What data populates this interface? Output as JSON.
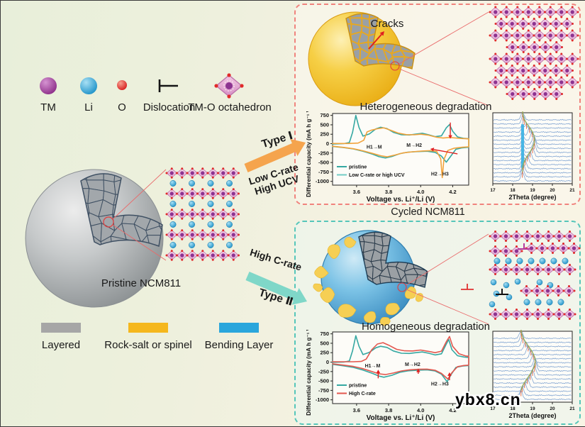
{
  "legend_top": {
    "items": [
      {
        "label": "TM",
        "icon": "tm-sphere-icon",
        "color": "#9b3595"
      },
      {
        "label": "Li",
        "icon": "li-sphere-icon",
        "color": "#2aa3d6"
      },
      {
        "label": "O",
        "icon": "o-sphere-icon",
        "color": "#dd2222"
      },
      {
        "label": "Dislocation",
        "icon": "dislocation-icon",
        "color": "#151515"
      },
      {
        "label": "TM-O octahedron",
        "icon": "octahedron-icon",
        "color": "#e7aed6"
      }
    ]
  },
  "pristine_label": "Pristine NCM811",
  "cycled_label": "Cycled NCM811",
  "cracks_label": "Cracks",
  "type1": {
    "title": "Type Ⅰ",
    "line1": "Low C-rate",
    "line2": "High UCV",
    "arrow_color": "#f5a44d"
  },
  "type2": {
    "title": "Type Ⅱ",
    "line1": "High C-rate",
    "arrow_color": "#7fd7c8"
  },
  "panel_top": {
    "title": "Heterogeneous degradation",
    "border_color": "#f0837d"
  },
  "panel_bottom": {
    "title": "Homogeneous degradation",
    "border_color": "#55c6ba"
  },
  "legend_bottom": {
    "items": [
      {
        "label": "Layered",
        "color": "#a6a6a6"
      },
      {
        "label": "Rock-salt or spinel",
        "color": "#f5b71d"
      },
      {
        "label": "Bending Layer",
        "color": "#2aa6dc"
      }
    ]
  },
  "watermark": "ybx8.cn",
  "chart_data": [
    {
      "name": "dqdv-heterogeneous",
      "type": "line",
      "panel_title": "Heterogeneous degradation",
      "xlabel": "Voltage vs. Li⁺/Li (V)",
      "ylabel": "Differential capacity (mA h g⁻¹ V⁻¹)",
      "xlim": [
        3.45,
        4.3
      ],
      "ylim": [
        -1100,
        800
      ],
      "xticks": [
        3.6,
        3.8,
        4.0,
        4.2
      ],
      "xtick_labels": [
        "3.6",
        "3.8",
        "4.0",
        "4.2"
      ],
      "yticks": [
        750,
        500,
        250,
        0,
        -250,
        -500,
        -750,
        -1000
      ],
      "series": [
        {
          "name": "pristine",
          "color": "#35a8a2",
          "legend_color": "#35a8a2",
          "charge": [
            [
              3.45,
              -10
            ],
            [
              3.52,
              0
            ],
            [
              3.555,
              30
            ],
            [
              3.575,
              300
            ],
            [
              3.595,
              750
            ],
            [
              3.615,
              430
            ],
            [
              3.64,
              200
            ],
            [
              3.68,
              260
            ],
            [
              3.72,
              390
            ],
            [
              3.75,
              435
            ],
            [
              3.79,
              400
            ],
            [
              3.83,
              300
            ],
            [
              3.88,
              235
            ],
            [
              3.93,
              230
            ],
            [
              3.97,
              255
            ],
            [
              4.01,
              275
            ],
            [
              4.05,
              235
            ],
            [
              4.09,
              185
            ],
            [
              4.13,
              210
            ],
            [
              4.16,
              420
            ],
            [
              4.18,
              505
            ],
            [
              4.2,
              330
            ],
            [
              4.23,
              180
            ],
            [
              4.27,
              140
            ],
            [
              4.3,
              130
            ]
          ],
          "discharge": [
            [
              3.45,
              -75
            ],
            [
              3.52,
              -105
            ],
            [
              3.58,
              -140
            ],
            [
              3.64,
              -200
            ],
            [
              3.7,
              -280
            ],
            [
              3.74,
              -345
            ],
            [
              3.78,
              -380
            ],
            [
              3.82,
              -340
            ],
            [
              3.87,
              -265
            ],
            [
              3.92,
              -225
            ],
            [
              3.98,
              -210
            ],
            [
              4.04,
              -200
            ],
            [
              4.09,
              -230
            ],
            [
              4.13,
              -330
            ],
            [
              4.16,
              -490
            ],
            [
              4.185,
              -350
            ],
            [
              4.22,
              -150
            ],
            [
              4.26,
              -110
            ],
            [
              4.3,
              -95
            ]
          ]
        },
        {
          "name": "Low C-rate or high UCV",
          "color": "#f2a33c",
          "legend_color": "#72cdc6",
          "charge": [
            [
              3.45,
              5
            ],
            [
              3.55,
              5
            ],
            [
              3.61,
              15
            ],
            [
              3.645,
              90
            ],
            [
              3.665,
              310
            ],
            [
              3.69,
              355
            ],
            [
              3.73,
              395
            ],
            [
              3.77,
              420
            ],
            [
              3.81,
              360
            ],
            [
              3.86,
              280
            ],
            [
              3.91,
              240
            ],
            [
              3.96,
              235
            ],
            [
              4.0,
              250
            ],
            [
              4.05,
              225
            ],
            [
              4.1,
              170
            ],
            [
              4.14,
              150
            ],
            [
              4.18,
              165
            ],
            [
              4.22,
              150
            ],
            [
              4.26,
              135
            ],
            [
              4.3,
              128
            ]
          ],
          "discharge": [
            [
              3.45,
              -70
            ],
            [
              3.52,
              -100
            ],
            [
              3.58,
              -135
            ],
            [
              3.64,
              -190
            ],
            [
              3.7,
              -260
            ],
            [
              3.75,
              -320
            ],
            [
              3.79,
              -350
            ],
            [
              3.84,
              -300
            ],
            [
              3.89,
              -245
            ],
            [
              3.95,
              -215
            ],
            [
              4.01,
              -195
            ],
            [
              4.06,
              -185
            ],
            [
              4.1,
              -205
            ],
            [
              4.125,
              -400
            ],
            [
              4.135,
              -900
            ],
            [
              4.145,
              -420
            ],
            [
              4.17,
              -180
            ],
            [
              4.21,
              -120
            ],
            [
              4.26,
              -95
            ],
            [
              4.3,
              -85
            ]
          ]
        }
      ],
      "annotations": [
        {
          "text": "H1→M",
          "x": 3.71,
          "y": -130
        },
        {
          "text": "M→H2",
          "x": 3.96,
          "y": -85
        },
        {
          "text": "H2→H3",
          "x": 4.12,
          "y": -850
        }
      ],
      "arrows": [
        {
          "x1": 4.185,
          "y1": 560,
          "x2": 4.185,
          "y2": 130
        },
        {
          "x1": 4.23,
          "y1": -270,
          "x2": 4.06,
          "y2": -140
        }
      ]
    },
    {
      "name": "xrd-heterogeneous",
      "type": "waterfall",
      "xlabel": "2Theta (degree)",
      "xlim": [
        17,
        21
      ],
      "xticks": [
        17,
        18,
        19,
        20,
        21
      ],
      "xtick_labels": [
        "17",
        "18",
        "19",
        "20",
        "21"
      ],
      "n_traces": 16,
      "peak_centers": [
        18.5,
        18.52,
        18.58,
        18.7,
        18.85,
        18.98,
        19.07,
        19.1,
        19.08,
        19.0,
        18.88,
        18.74,
        18.62,
        18.54,
        18.5,
        18.49
      ],
      "secondary_peak": {
        "center": 18.5,
        "row_start": 3,
        "row_end": 12
      },
      "highlight_bar": {
        "center": 18.5,
        "row_start": 3,
        "row_end": 12,
        "color": "#3fb3e4"
      }
    },
    {
      "name": "dqdv-homogeneous",
      "type": "line",
      "panel_title": "Homogeneous degradation",
      "xlabel": "Voltage vs. Li⁺/Li (V)",
      "ylabel": "Differential capacity (mA h g⁻¹ V⁻¹)",
      "xlim": [
        3.45,
        4.3
      ],
      "ylim": [
        -1100,
        800
      ],
      "xticks": [
        3.6,
        3.8,
        4.0,
        4.2
      ],
      "xtick_labels": [
        "3.6",
        "3.8",
        "4.0",
        "4.2"
      ],
      "yticks": [
        750,
        500,
        250,
        0,
        -250,
        -500,
        -750,
        -1000
      ],
      "series": [
        {
          "name": "pristine",
          "color": "#35a8a2",
          "legend_color": "#35a8a2",
          "charge": [
            [
              3.45,
              -5
            ],
            [
              3.52,
              0
            ],
            [
              3.555,
              30
            ],
            [
              3.575,
              300
            ],
            [
              3.595,
              700
            ],
            [
              3.615,
              420
            ],
            [
              3.64,
              200
            ],
            [
              3.68,
              260
            ],
            [
              3.72,
              380
            ],
            [
              3.75,
              420
            ],
            [
              3.79,
              390
            ],
            [
              3.83,
              295
            ],
            [
              3.88,
              235
            ],
            [
              3.93,
              230
            ],
            [
              3.97,
              250
            ],
            [
              4.01,
              270
            ],
            [
              4.05,
              235
            ],
            [
              4.09,
              190
            ],
            [
              4.13,
              220
            ],
            [
              4.16,
              480
            ],
            [
              4.175,
              600
            ],
            [
              4.195,
              330
            ],
            [
              4.23,
              170
            ],
            [
              4.27,
              135
            ],
            [
              4.3,
              125
            ]
          ],
          "discharge": [
            [
              3.45,
              -60
            ],
            [
              3.52,
              -100
            ],
            [
              3.58,
              -140
            ],
            [
              3.64,
              -210
            ],
            [
              3.7,
              -300
            ],
            [
              3.74,
              -370
            ],
            [
              3.77,
              -400
            ],
            [
              3.82,
              -350
            ],
            [
              3.87,
              -270
            ],
            [
              3.92,
              -230
            ],
            [
              3.98,
              -215
            ],
            [
              4.04,
              -205
            ],
            [
              4.09,
              -235
            ],
            [
              4.13,
              -320
            ],
            [
              4.165,
              -520
            ],
            [
              4.19,
              -330
            ],
            [
              4.22,
              -140
            ],
            [
              4.26,
              -105
            ],
            [
              4.3,
              -90
            ]
          ]
        },
        {
          "name": "High C-rate",
          "color": "#e3574e",
          "legend_color": "#e3574e",
          "charge": [
            [
              3.45,
              10
            ],
            [
              3.58,
              10
            ],
            [
              3.63,
              20
            ],
            [
              3.66,
              80
            ],
            [
              3.695,
              330
            ],
            [
              3.73,
              480
            ],
            [
              3.765,
              515
            ],
            [
              3.8,
              450
            ],
            [
              3.85,
              340
            ],
            [
              3.9,
              300
            ],
            [
              3.95,
              295
            ],
            [
              4.0,
              320
            ],
            [
              4.05,
              285
            ],
            [
              4.09,
              250
            ],
            [
              4.13,
              290
            ],
            [
              4.16,
              540
            ],
            [
              4.18,
              680
            ],
            [
              4.2,
              420
            ],
            [
              4.24,
              220
            ],
            [
              4.28,
              165
            ],
            [
              4.3,
              155
            ]
          ],
          "discharge": [
            [
              3.45,
              -45
            ],
            [
              3.52,
              -80
            ],
            [
              3.58,
              -115
            ],
            [
              3.64,
              -175
            ],
            [
              3.7,
              -255
            ],
            [
              3.74,
              -310
            ],
            [
              3.78,
              -330
            ],
            [
              3.83,
              -290
            ],
            [
              3.88,
              -235
            ],
            [
              3.93,
              -205
            ],
            [
              3.99,
              -190
            ],
            [
              4.04,
              -185
            ],
            [
              4.09,
              -215
            ],
            [
              4.13,
              -300
            ],
            [
              4.17,
              -450
            ],
            [
              4.195,
              -280
            ],
            [
              4.23,
              -120
            ],
            [
              4.27,
              -90
            ],
            [
              4.3,
              -80
            ]
          ]
        }
      ],
      "annotations": [
        {
          "text": "H1→M",
          "x": 3.7,
          "y": -140
        },
        {
          "text": "M→H2",
          "x": 3.95,
          "y": -100
        },
        {
          "text": "H2→H3",
          "x": 4.12,
          "y": -620
        }
      ],
      "arrows": [
        {
          "x1": 3.735,
          "y1": -430,
          "x2": 3.735,
          "y2": -200
        },
        {
          "x1": 3.985,
          "y1": -310,
          "x2": 3.985,
          "y2": -170
        },
        {
          "x1": 4.18,
          "y1": -480,
          "x2": 4.18,
          "y2": -270
        }
      ]
    },
    {
      "name": "xrd-homogeneous",
      "type": "waterfall",
      "xlabel": "2Theta (degree)",
      "xlim": [
        17,
        21
      ],
      "xticks": [
        17,
        18,
        19,
        20,
        21
      ],
      "xtick_labels": [
        "17",
        "18",
        "19",
        "20",
        "21"
      ],
      "n_traces": 16,
      "peak_centers": [
        18.42,
        18.45,
        18.52,
        18.64,
        18.78,
        18.92,
        19.04,
        19.12,
        19.14,
        19.1,
        19.0,
        18.88,
        18.74,
        18.6,
        18.48,
        18.42
      ]
    }
  ]
}
